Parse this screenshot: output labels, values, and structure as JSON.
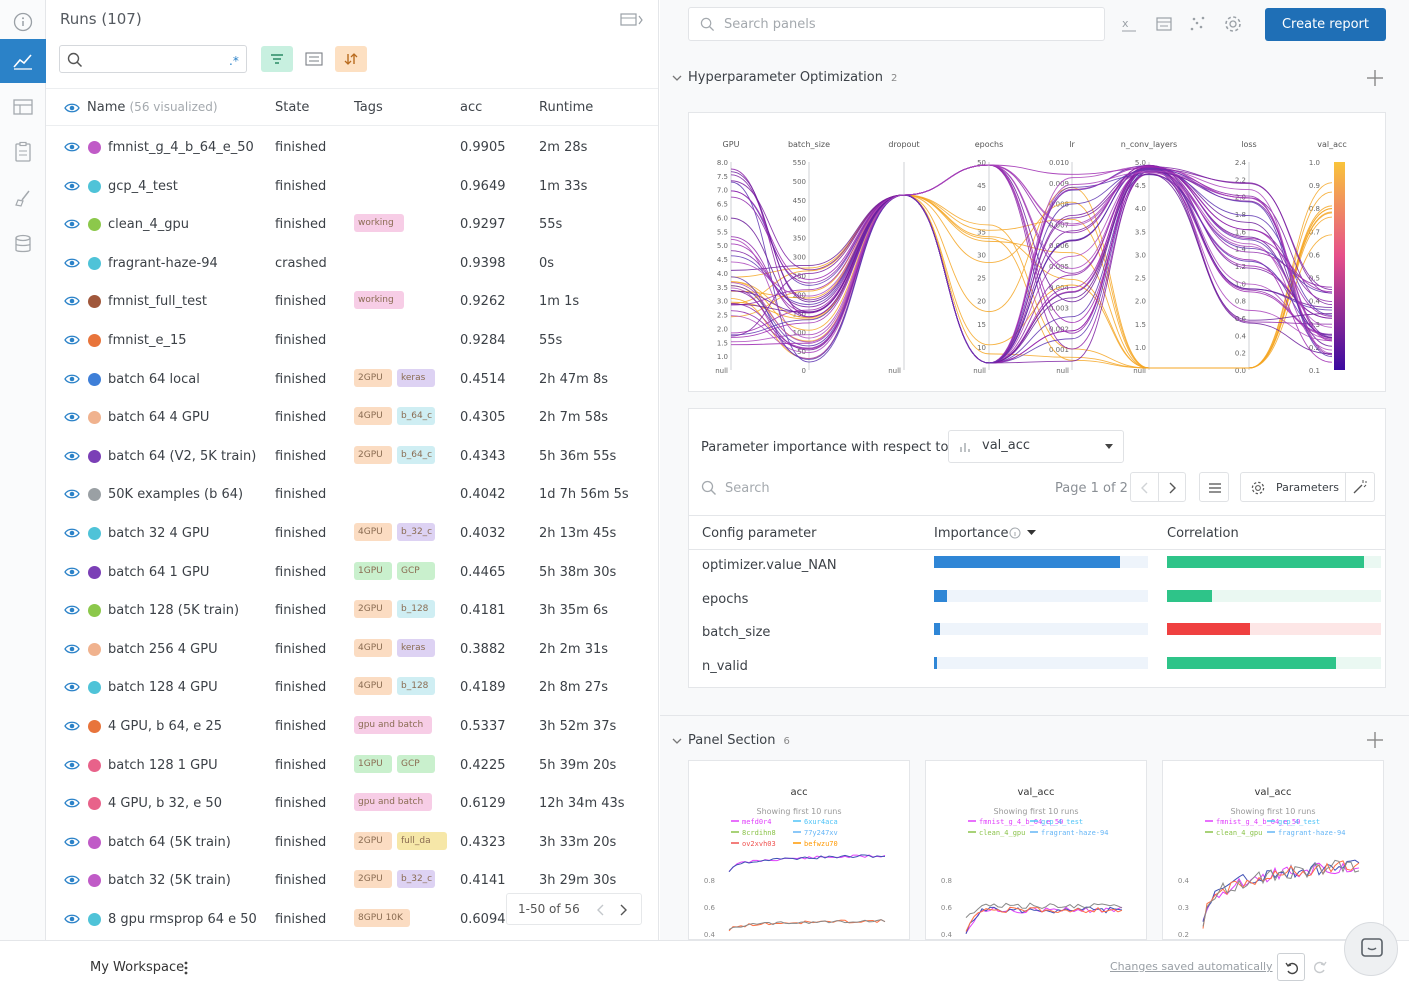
{
  "runs_panel": {
    "title": "Runs (107)",
    "columns": {
      "name": "Name",
      "name_note": "(56 visualized)",
      "state": "State",
      "tags": "Tags",
      "acc": "acc",
      "runtime": "Runtime"
    },
    "rows": [
      {
        "name": "fmnist_g_4_b_64_e_50",
        "color": "#c05bc7",
        "state": "finished",
        "tags": [],
        "acc": "0.9905",
        "runtime": "2m 28s"
      },
      {
        "name": "gcp_4_test",
        "color": "#4fc3d8",
        "state": "finished",
        "tags": [],
        "acc": "0.9649",
        "runtime": "1m 33s"
      },
      {
        "name": "clean_4_gpu",
        "color": "#8cc84b",
        "state": "finished",
        "tags": [
          {
            "label": "working",
            "bg": "#f7cde6"
          }
        ],
        "acc": "0.9297",
        "runtime": "55s"
      },
      {
        "name": "fragrant-haze-94",
        "color": "#4fc3d8",
        "state": "crashed",
        "tags": [],
        "acc": "0.9398",
        "runtime": "0s"
      },
      {
        "name": "fmnist_full_test",
        "color": "#a0573b",
        "state": "finished",
        "tags": [
          {
            "label": "working",
            "bg": "#f7cde6"
          }
        ],
        "acc": "0.9262",
        "runtime": "1m 1s"
      },
      {
        "name": "fmnist_e_15",
        "color": "#e8743b",
        "state": "finished",
        "tags": [],
        "acc": "0.9284",
        "runtime": "55s"
      },
      {
        "name": "batch 64 local",
        "color": "#3e7fd8",
        "state": "finished",
        "tags": [
          {
            "label": "2GPU",
            "bg": "#fbdcc2"
          },
          {
            "label": "keras",
            "bg": "#ddd2f3"
          }
        ],
        "acc": "0.4514",
        "runtime": "2h 47m 8s"
      },
      {
        "name": "batch 64 4 GPU",
        "color": "#f0b28e",
        "state": "finished",
        "tags": [
          {
            "label": "4GPU",
            "bg": "#fbdcc2"
          },
          {
            "label": "b_64_c",
            "bg": "#cfeef3"
          }
        ],
        "acc": "0.4305",
        "runtime": "2h 7m 58s"
      },
      {
        "name": "batch 64 (V2, 5K train)",
        "color": "#7b3fb6",
        "state": "finished",
        "tags": [
          {
            "label": "2GPU",
            "bg": "#fbdcc2"
          },
          {
            "label": "b_64_c",
            "bg": "#cfeef3"
          }
        ],
        "acc": "0.4343",
        "runtime": "5h 36m 55s"
      },
      {
        "name": "50K examples (b 64)",
        "color": "#9aa0a4",
        "state": "finished",
        "tags": [],
        "acc": "0.4042",
        "runtime": "1d 7h 56m 5s"
      },
      {
        "name": "batch 32 4 GPU",
        "color": "#4fc3d8",
        "state": "finished",
        "tags": [
          {
            "label": "4GPU",
            "bg": "#fbdcc2"
          },
          {
            "label": "b_32_c",
            "bg": "#ddd2f3"
          }
        ],
        "acc": "0.4032",
        "runtime": "2h 13m 45s"
      },
      {
        "name": "batch 64 1 GPU",
        "color": "#7b3fb6",
        "state": "finished",
        "tags": [
          {
            "label": "1GPU",
            "bg": "#c9f0cd"
          },
          {
            "label": "GCP",
            "bg": "#c9f0cd"
          }
        ],
        "acc": "0.4465",
        "runtime": "5h 38m 30s"
      },
      {
        "name": "batch 128 (5K train)",
        "color": "#8cc84b",
        "state": "finished",
        "tags": [
          {
            "label": "2GPU",
            "bg": "#fbdcc2"
          },
          {
            "label": "b_128",
            "bg": "#cfeef3"
          }
        ],
        "acc": "0.4181",
        "runtime": "3h 35m 6s"
      },
      {
        "name": "batch 256 4 GPU",
        "color": "#f0b28e",
        "state": "finished",
        "tags": [
          {
            "label": "4GPU",
            "bg": "#fbdcc2"
          },
          {
            "label": "keras",
            "bg": "#ddd2f3"
          }
        ],
        "acc": "0.3882",
        "runtime": "2h 2m 31s"
      },
      {
        "name": "batch 128 4 GPU",
        "color": "#4fc3d8",
        "state": "finished",
        "tags": [
          {
            "label": "4GPU",
            "bg": "#fbdcc2"
          },
          {
            "label": "b_128",
            "bg": "#cfeef3"
          }
        ],
        "acc": "0.4189",
        "runtime": "2h 8m 27s"
      },
      {
        "name": "4 GPU, b 64, e 25",
        "color": "#e8743b",
        "state": "finished",
        "tags": [
          {
            "label": "gpu and batch",
            "bg": "#f7cde6"
          }
        ],
        "acc": "0.5337",
        "runtime": "3h 52m 37s"
      },
      {
        "name": "batch 128 1 GPU",
        "color": "#e8628a",
        "state": "finished",
        "tags": [
          {
            "label": "1GPU",
            "bg": "#c9f0cd"
          },
          {
            "label": "GCP",
            "bg": "#c9f0cd"
          }
        ],
        "acc": "0.4225",
        "runtime": "5h 39m 20s"
      },
      {
        "name": "4 GPU, b 32, e 50",
        "color": "#e8628a",
        "state": "finished",
        "tags": [
          {
            "label": "gpu and batch",
            "bg": "#f7cde6"
          }
        ],
        "acc": "0.6129",
        "runtime": "12h 34m 43s"
      },
      {
        "name": "batch 64 (5K train)",
        "color": "#c05bc7",
        "state": "finished",
        "tags": [
          {
            "label": "2GPU",
            "bg": "#fbdcc2"
          },
          {
            "label": "full_da",
            "bg": "#f6e7a8"
          }
        ],
        "acc": "0.4323",
        "runtime": "3h 33m 20s"
      },
      {
        "name": "batch 32 (5K train)",
        "color": "#c05bc7",
        "state": "finished",
        "tags": [
          {
            "label": "2GPU",
            "bg": "#fbdcc2"
          },
          {
            "label": "b_32_c",
            "bg": "#ddd2f3"
          }
        ],
        "acc": "0.4141",
        "runtime": "3h 29m 30s"
      },
      {
        "name": "8 gpu rmsprop 64 e 50",
        "color": "#4fc3d8",
        "state": "finished",
        "tags": [
          {
            "label": "8GPU 10K",
            "bg": "#fbdcc2"
          }
        ],
        "acc": "0.6094",
        "runtime": ""
      }
    ],
    "pagination": "1-50 of 56"
  },
  "toolbar": {
    "search_placeholder": "Search panels",
    "create_report": "Create report"
  },
  "hyperparam_section": {
    "title": "Hyperparameter Optimization",
    "count": "2",
    "axes": [
      {
        "label": "GPU",
        "ticks": [
          "8.0",
          "7.5",
          "7.0",
          "6.5",
          "6.0",
          "5.5",
          "5.0",
          "4.5",
          "4.0",
          "3.5",
          "3.0",
          "2.5",
          "2.0",
          "1.5",
          "1.0",
          "null"
        ]
      },
      {
        "label": "batch_size",
        "ticks": [
          "550",
          "500",
          "450",
          "400",
          "350",
          "300",
          "250",
          "200",
          "150",
          "100",
          "50",
          "0"
        ]
      },
      {
        "label": "dropout",
        "ticks": [
          "null"
        ]
      },
      {
        "label": "epochs",
        "ticks": [
          "50",
          "45",
          "40",
          "35",
          "30",
          "25",
          "20",
          "15",
          "10",
          "null"
        ]
      },
      {
        "label": "lr",
        "ticks": [
          "0.010",
          "0.009",
          "0.008",
          "0.007",
          "0.006",
          "0.005",
          "0.004",
          "0.003",
          "0.002",
          "0.001",
          "null"
        ]
      },
      {
        "label": "n_conv_layers",
        "ticks": [
          "5.0",
          "4.5",
          "4.0",
          "3.5",
          "3.0",
          "2.5",
          "2.0",
          "1.5",
          "1.0",
          "null"
        ]
      },
      {
        "label": "loss",
        "ticks": [
          "2.4",
          "2.2",
          "2.0",
          "1.8",
          "1.6",
          "1.4",
          "1.2",
          "1.0",
          "0.8",
          "0.6",
          "0.4",
          "0.2",
          "0.0"
        ]
      },
      {
        "label": "val_acc",
        "ticks": [
          "1.0",
          "0.9",
          "0.8",
          "0.7",
          "0.6",
          "0.5",
          "0.4",
          "0.3",
          "0.2",
          "0.1"
        ]
      }
    ]
  },
  "param_importance": {
    "label": "Parameter importance with respect to",
    "metric": "val_acc",
    "search_placeholder": "Search",
    "page": "Page 1 of 2",
    "parameters_button": "Parameters",
    "columns": {
      "config": "Config parameter",
      "importance": "Importance",
      "correlation": "Correlation"
    },
    "rows": [
      {
        "param": "optimizer.value_NAN",
        "importance": 0.87,
        "correlation": 0.92,
        "corr_sign": "positive"
      },
      {
        "param": "epochs",
        "importance": 0.06,
        "correlation": 0.21,
        "corr_sign": "positive"
      },
      {
        "param": "batch_size",
        "importance": 0.03,
        "correlation": 0.39,
        "corr_sign": "negative"
      },
      {
        "param": "n_valid",
        "importance": 0.01,
        "correlation": 0.79,
        "corr_sign": "positive"
      }
    ],
    "colors": {
      "importance": "#2f86d6",
      "positive": "#2ec489",
      "negative": "#ef4040"
    }
  },
  "panel_section": {
    "title": "Panel Section",
    "count": "6",
    "panels": [
      {
        "title": "acc",
        "subtitle": "Showing first 10 runs",
        "legend": [
          "mefd0r4",
          "6xur4aca",
          "8crdihn8",
          "77y247xv",
          "ov2xvh03",
          "befwzu70"
        ],
        "yticks": [
          "0.8",
          "0.6",
          "0.4"
        ]
      },
      {
        "title": "val_acc",
        "subtitle": "Showing first 10 runs",
        "legend": [
          "fmnist_g_4_b_64_e_50",
          "gcp_4_test",
          "clean_4_gpu",
          "fragrant-haze-94"
        ],
        "yticks": [
          "0.8",
          "0.6",
          "0.4"
        ]
      },
      {
        "title": "val_acc",
        "subtitle": "Showing first 10 runs",
        "legend": [
          "fmnist_g_4_b_64_e_50",
          "gcp_4_test",
          "clean_4_gpu",
          "fragrant-haze-94"
        ],
        "yticks": [
          "0.4",
          "0.3",
          "0.2"
        ]
      }
    ]
  },
  "footer": {
    "workspace": "My Workspace",
    "saved": "Changes saved automatically"
  }
}
